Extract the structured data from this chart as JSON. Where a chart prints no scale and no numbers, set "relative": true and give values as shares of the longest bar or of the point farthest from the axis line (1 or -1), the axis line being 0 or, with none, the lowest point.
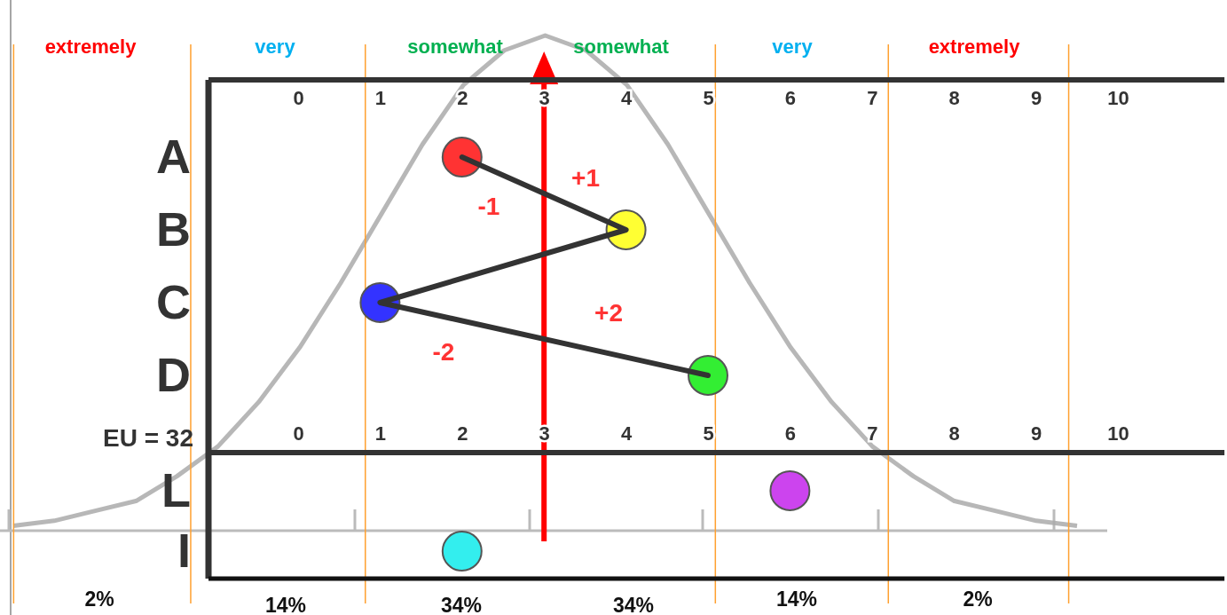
{
  "chart_data": [
    {
      "type": "line",
      "relative": true,
      "color": "#aaaaaa",
      "categories": [
        null,
        null,
        null,
        null,
        null,
        null,
        null,
        null,
        null,
        null,
        null,
        null,
        null,
        null,
        null,
        null,
        null,
        null,
        null,
        null,
        null,
        null,
        null,
        null,
        null,
        null,
        null
      ],
      "values": [
        0.01,
        0.02,
        0.04,
        0.06,
        0.11,
        0.17,
        0.26,
        0.37,
        0.5,
        0.64,
        0.78,
        0.9,
        0.97,
        1,
        0.97,
        0.9,
        0.78,
        0.64,
        0.5,
        0.37,
        0.26,
        0.17,
        0.11,
        0.06,
        0.04,
        0.02,
        0.01
      ],
      "annotations": [
        "extremely",
        "very",
        "somewhat",
        "somewhat",
        "very",
        "extremely",
        "2%",
        "14%",
        "34%",
        "34%",
        "14%",
        "2%"
      ]
    },
    {
      "type": "scatter",
      "orientation": "horizontal",
      "categories": [
        "A",
        "B",
        "C",
        "D"
      ],
      "xlim": [
        -3.64,
        11.3
      ],
      "xticks": [
        0,
        1,
        2,
        3,
        4,
        5,
        6,
        7,
        8,
        9,
        10
      ],
      "marker": "circle",
      "series": [
        {
          "type": "line",
          "color": "#333333",
          "colors": [
            "#ff3333",
            "#ffff33",
            "#3333ff",
            "#33ee33"
          ],
          "values": [
            2,
            4,
            1,
            5
          ]
        }
      ],
      "ref_lines": [
        {
          "axis": "x",
          "value": -3.47,
          "color": "#ffa030"
        },
        {
          "axis": "x",
          "value": -1.31,
          "color": "#ffa030"
        },
        {
          "axis": "x",
          "value": 0.82,
          "color": "#ffa030"
        },
        {
          "axis": "x",
          "value": 5.09,
          "color": "#ffa030"
        },
        {
          "axis": "x",
          "value": 7.2,
          "color": "#ffa030"
        },
        {
          "axis": "x",
          "value": 9.4,
          "color": "#ffa030"
        },
        {
          "axis": "x",
          "value": 3,
          "color": "#ff0000"
        }
      ],
      "annotations": [
        "+1",
        "-1",
        "+2",
        "-2"
      ]
    },
    {
      "type": "scatter",
      "orientation": "horizontal",
      "categories": [
        "L",
        "I"
      ],
      "xlim": [
        -3.64,
        11.3
      ],
      "xticks": [
        0,
        1,
        2,
        3,
        4,
        5,
        6,
        7,
        8,
        9,
        10
      ],
      "marker": "circle",
      "series": [
        {
          "colors": [
            "#cc44ee",
            "#33eeee"
          ],
          "values": [
            6,
            2
          ]
        }
      ],
      "annotations": [
        "EU = 32"
      ]
    }
  ]
}
